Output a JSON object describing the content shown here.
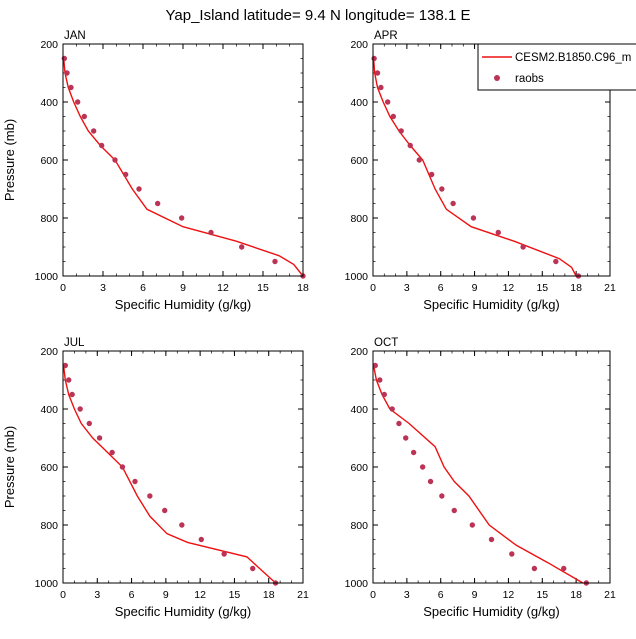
{
  "title": "Yap_Island  latitude= 9.4 N longitude= 138.1 E",
  "colors": {
    "model": "#ee1111",
    "obs": "#bb3355",
    "axis": "#000000"
  },
  "legend": {
    "model_label": "CESM2.B1850.C96_m",
    "obs_label": "raobs"
  },
  "chart_data": [
    {
      "type": "line",
      "panel": "JAN",
      "xlabel": "Specific Humidity (g/kg)",
      "ylabel": "Pressure (mb)",
      "xlim": [
        0,
        18
      ],
      "xticks": [
        0,
        3,
        6,
        9,
        12,
        15,
        18
      ],
      "ylim": [
        1000,
        200
      ],
      "yticks": [
        200,
        400,
        600,
        800,
        1000
      ],
      "series": [
        {
          "name": "CESM2.B1850.C96_m",
          "kind": "line",
          "x": [
            0.05,
            0.15,
            0.4,
            0.8,
            1.3,
            1.9,
            2.8,
            3.9,
            5.2,
            6.3,
            9.0,
            13.0,
            16.2,
            17.3,
            18.0
          ],
          "y": [
            250,
            300,
            350,
            400,
            450,
            500,
            550,
            600,
            700,
            770,
            830,
            880,
            930,
            960,
            1000
          ]
        },
        {
          "name": "raobs",
          "kind": "scatter",
          "x": [
            0.1,
            0.3,
            0.6,
            1.1,
            1.6,
            2.3,
            2.9,
            3.9,
            4.7,
            5.7,
            7.1,
            8.9,
            11.1,
            13.4,
            15.9,
            18.0
          ],
          "y": [
            250,
            300,
            350,
            400,
            450,
            500,
            550,
            600,
            650,
            700,
            750,
            800,
            850,
            900,
            950,
            1000
          ]
        }
      ]
    },
    {
      "type": "line",
      "panel": "APR",
      "xlabel": "Specific Humidity (g/kg)",
      "ylabel": "",
      "xlim": [
        0,
        21
      ],
      "xticks": [
        0,
        3,
        6,
        9,
        12,
        15,
        18,
        21
      ],
      "ylim": [
        1000,
        200
      ],
      "yticks": [
        200,
        400,
        600,
        800,
        1000
      ],
      "series": [
        {
          "name": "CESM2.B1850.C96_m",
          "kind": "line",
          "x": [
            0.05,
            0.15,
            0.4,
            0.9,
            1.5,
            2.3,
            3.3,
            4.4,
            5.5,
            6.5,
            8.7,
            12.5,
            16.5,
            17.6,
            18.0
          ],
          "y": [
            250,
            300,
            350,
            400,
            450,
            500,
            550,
            600,
            700,
            770,
            830,
            880,
            940,
            970,
            1000
          ]
        },
        {
          "name": "raobs",
          "kind": "scatter",
          "x": [
            0.1,
            0.4,
            0.7,
            1.3,
            1.8,
            2.5,
            3.3,
            4.1,
            5.2,
            6.1,
            7.1,
            8.9,
            11.1,
            13.3,
            16.2,
            18.2
          ],
          "y": [
            250,
            300,
            350,
            400,
            450,
            500,
            550,
            600,
            650,
            700,
            750,
            800,
            850,
            900,
            950,
            1000
          ]
        }
      ]
    },
    {
      "type": "line",
      "panel": "JUL",
      "xlabel": "Specific Humidity (g/kg)",
      "ylabel": "Pressure (mb)",
      "xlim": [
        0,
        21
      ],
      "xticks": [
        0,
        3,
        6,
        9,
        12,
        15,
        18,
        21
      ],
      "ylim": [
        1000,
        200
      ],
      "yticks": [
        200,
        400,
        600,
        800,
        1000
      ],
      "series": [
        {
          "name": "CESM2.B1850.C96_m",
          "kind": "line",
          "x": [
            0.05,
            0.2,
            0.5,
            1.0,
            1.6,
            2.6,
            3.9,
            5.2,
            6.5,
            7.6,
            9.1,
            10.9,
            16.1,
            17.2,
            18.6
          ],
          "y": [
            250,
            300,
            350,
            400,
            450,
            500,
            550,
            600,
            700,
            770,
            830,
            860,
            910,
            950,
            1000
          ]
        },
        {
          "name": "raobs",
          "kind": "scatter",
          "x": [
            0.2,
            0.5,
            0.8,
            1.5,
            2.3,
            3.2,
            4.3,
            5.2,
            6.3,
            7.6,
            8.9,
            10.4,
            12.1,
            14.1,
            16.6,
            18.6
          ],
          "y": [
            250,
            300,
            350,
            400,
            450,
            500,
            550,
            600,
            650,
            700,
            750,
            800,
            850,
            900,
            950,
            1000
          ]
        }
      ]
    },
    {
      "type": "line",
      "panel": "OCT",
      "xlabel": "Specific Humidity (g/kg)",
      "ylabel": "",
      "xlim": [
        0,
        21
      ],
      "xticks": [
        0,
        3,
        6,
        9,
        12,
        15,
        18,
        21
      ],
      "ylim": [
        1000,
        200
      ],
      "yticks": [
        200,
        400,
        600,
        800,
        1000
      ],
      "series": [
        {
          "name": "CESM2.B1850.C96_m",
          "kind": "line",
          "x": [
            0.05,
            0.3,
            0.8,
            1.5,
            3.2,
            5.5,
            6.3,
            7.2,
            8.5,
            10.3,
            12.7,
            15.5,
            18.6
          ],
          "y": [
            250,
            300,
            350,
            400,
            450,
            530,
            600,
            650,
            700,
            800,
            870,
            930,
            1000
          ]
        },
        {
          "name": "raobs",
          "kind": "scatter",
          "x": [
            0.2,
            0.6,
            1.0,
            1.7,
            2.3,
            2.9,
            3.6,
            4.4,
            5.1,
            6.1,
            7.2,
            8.8,
            10.5,
            12.3,
            14.3,
            16.9,
            18.9
          ],
          "y": [
            250,
            300,
            350,
            400,
            450,
            500,
            550,
            600,
            650,
            700,
            750,
            800,
            850,
            900,
            950,
            950,
            1000
          ]
        }
      ]
    }
  ]
}
